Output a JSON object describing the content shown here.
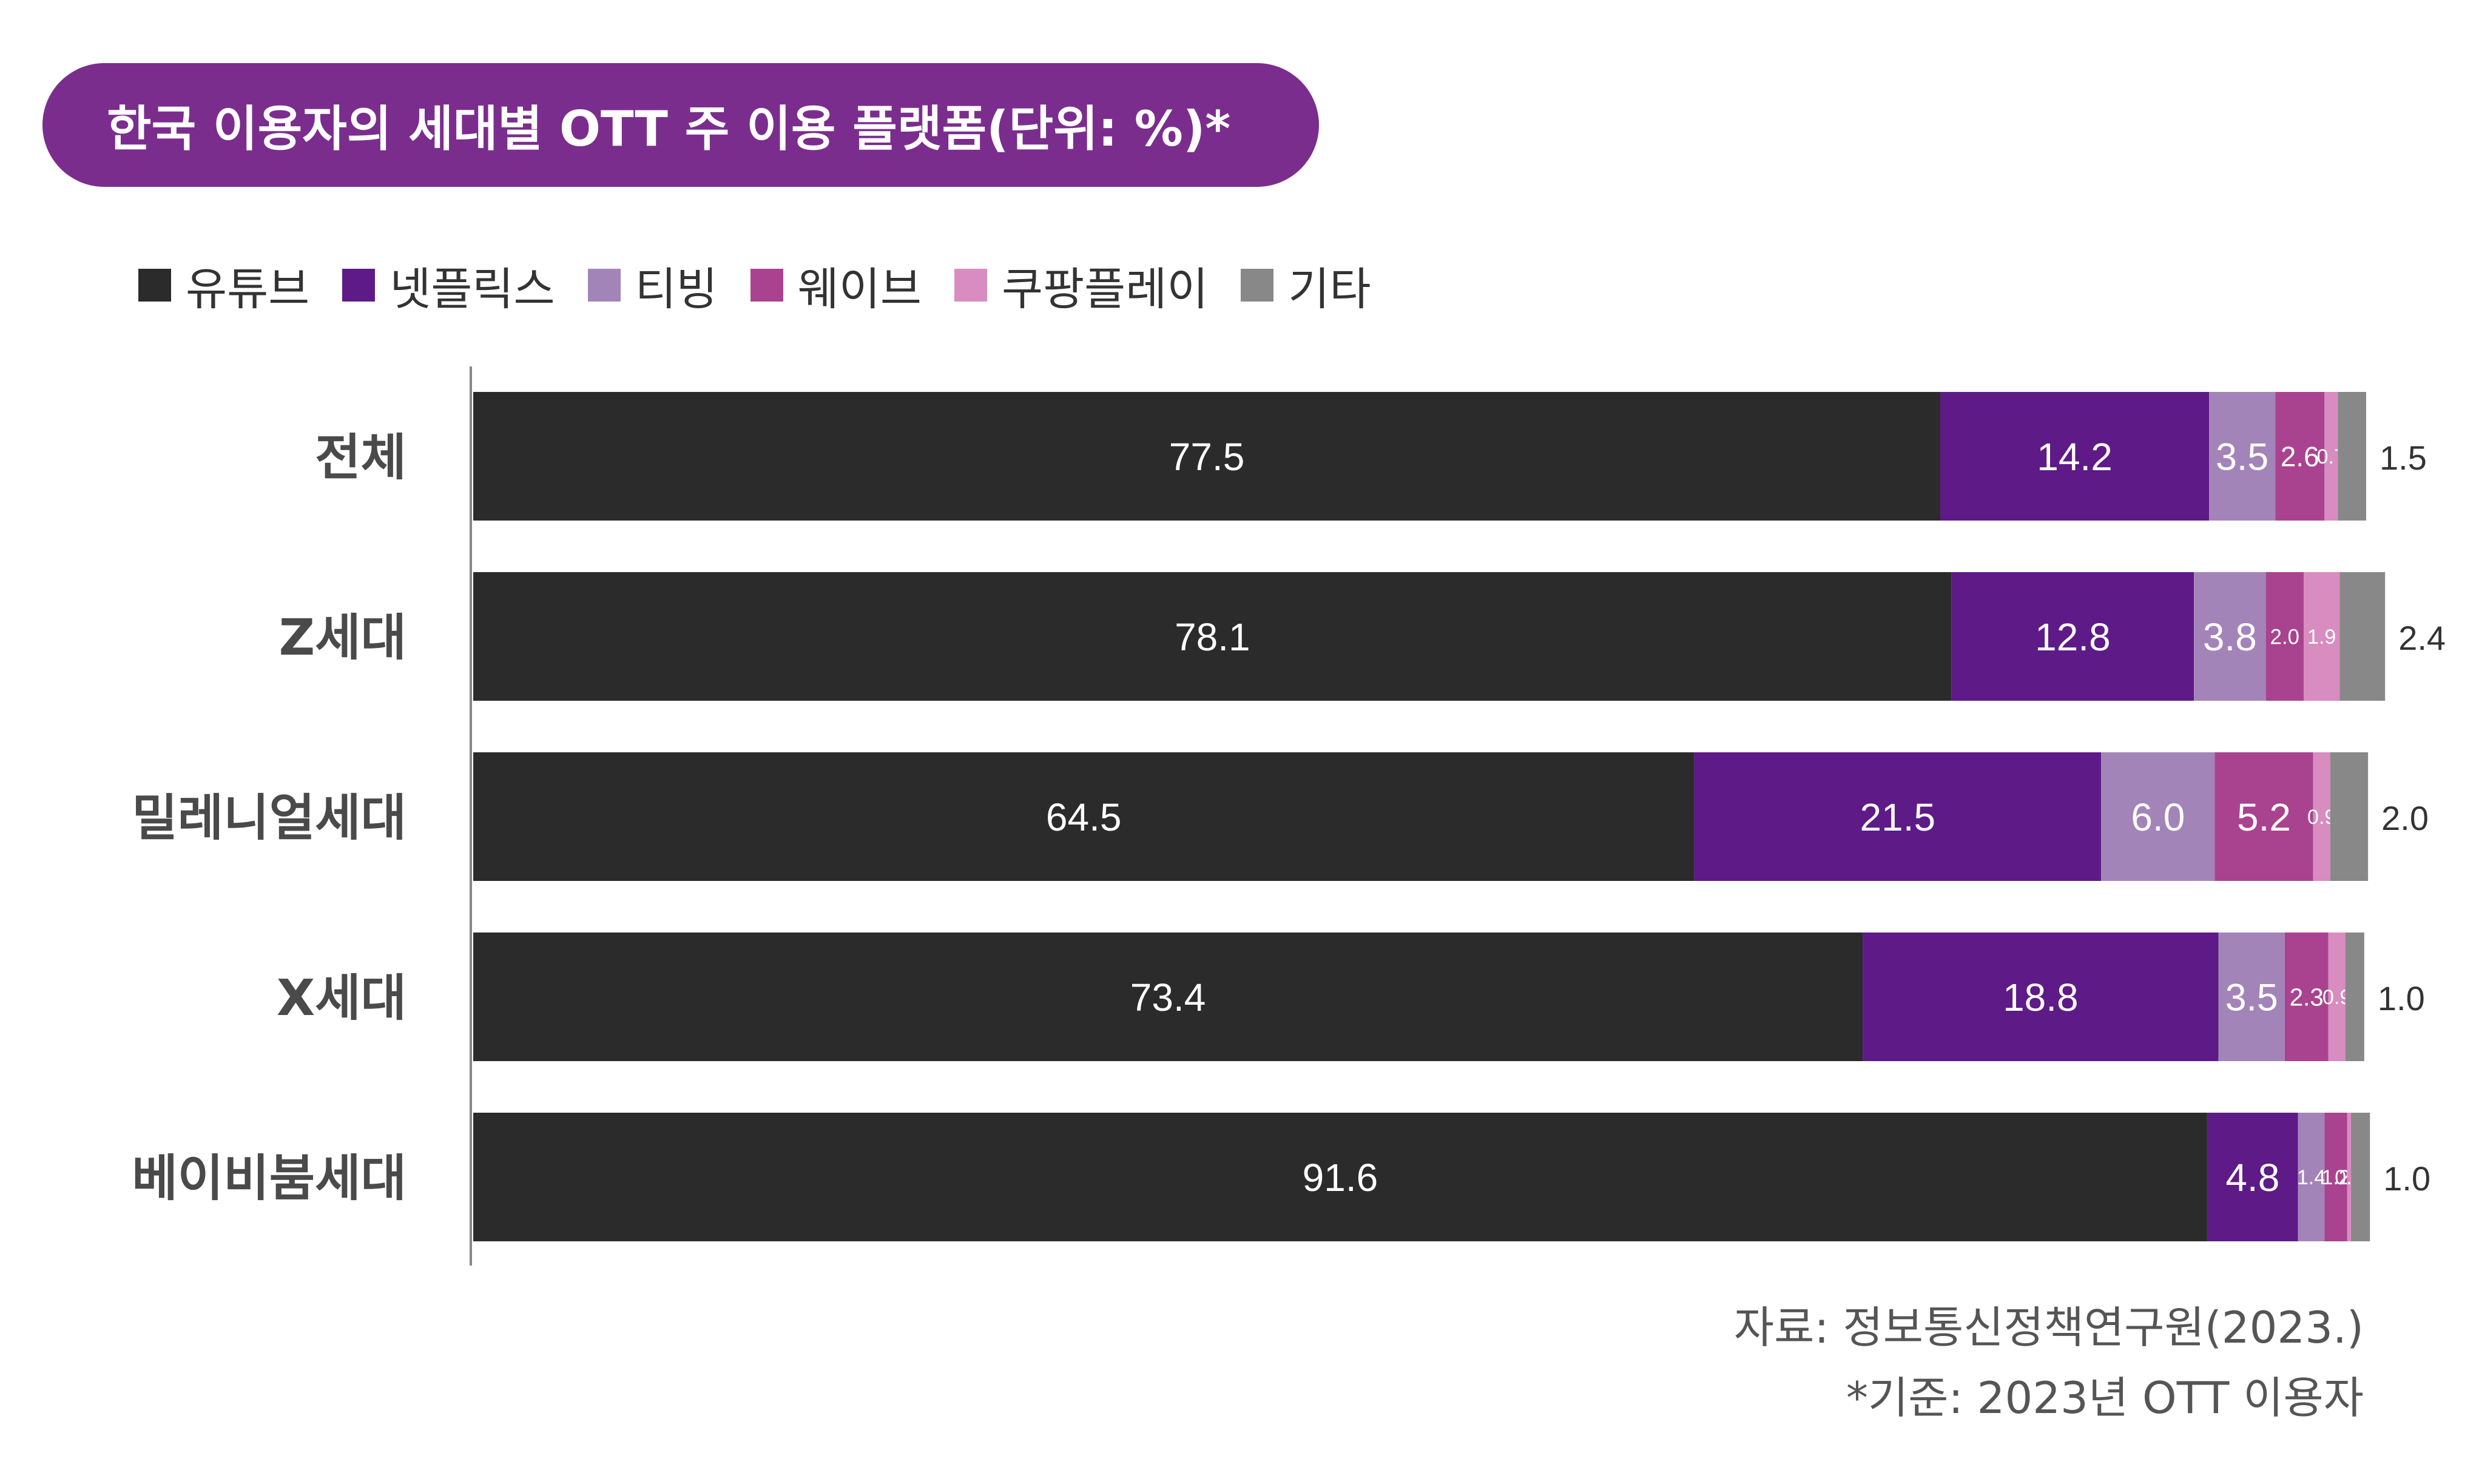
{
  "title": "한국 이용자의 세대별 OTT 주 이용 플랫폼(단위: %)*",
  "legend": [
    {
      "label": "유튜브",
      "color": "#2b2b2b"
    },
    {
      "label": "넷플릭스",
      "color": "#5e1a87"
    },
    {
      "label": "티빙",
      "color": "#a384b8"
    },
    {
      "label": "웨이브",
      "color": "#a9438f"
    },
    {
      "label": "쿠팡플레이",
      "color": "#d88cc0"
    },
    {
      "label": "기타",
      "color": "#888888"
    }
  ],
  "chart_data": {
    "type": "bar",
    "orientation": "horizontal",
    "stacked": true,
    "categories": [
      "전체",
      "Z세대",
      "밀레니얼세대",
      "X세대",
      "베이비붐세대"
    ],
    "series": [
      {
        "name": "유튜브",
        "color": "#2b2b2b",
        "values": [
          77.5,
          78.1,
          64.5,
          73.4,
          91.6
        ]
      },
      {
        "name": "넷플릭스",
        "color": "#5e1a87",
        "values": [
          14.2,
          12.8,
          21.5,
          18.8,
          4.8
        ]
      },
      {
        "name": "티빙",
        "color": "#a384b8",
        "values": [
          3.5,
          3.8,
          6.0,
          3.5,
          1.4
        ]
      },
      {
        "name": "웨이브",
        "color": "#a9438f",
        "values": [
          2.6,
          2.0,
          5.2,
          2.3,
          1.2
        ]
      },
      {
        "name": "쿠팡플레이",
        "color": "#d88cc0",
        "values": [
          0.7,
          1.9,
          0.9,
          0.9,
          0.2
        ]
      },
      {
        "name": "기타",
        "color": "#888888",
        "values": [
          1.5,
          2.4,
          2.0,
          1.0,
          1.0
        ]
      }
    ],
    "value_labels": [
      [
        "77.5",
        "14.2",
        "3.5",
        "2.6",
        "0.7",
        "1.5"
      ],
      [
        "78.1",
        "12.8",
        "3.8",
        "2.0",
        "1.9",
        "2.4"
      ],
      [
        "64.5",
        "21.5",
        "6.0",
        "5.2",
        "0.9",
        "2.0"
      ],
      [
        "73.4",
        "18.8",
        "3.5",
        "2.3",
        "0.9",
        "1.0"
      ],
      [
        "91.6",
        "4.8",
        "1.4",
        "1.2",
        "0.2",
        "1.0"
      ]
    ],
    "xlim": [
      0,
      100
    ],
    "grid": false,
    "legend_position": "top-left"
  },
  "source": {
    "line1": "자료: 정보통신정책연구원(2023.)",
    "line2": "*기준: 2023년 OTT 이용자"
  }
}
